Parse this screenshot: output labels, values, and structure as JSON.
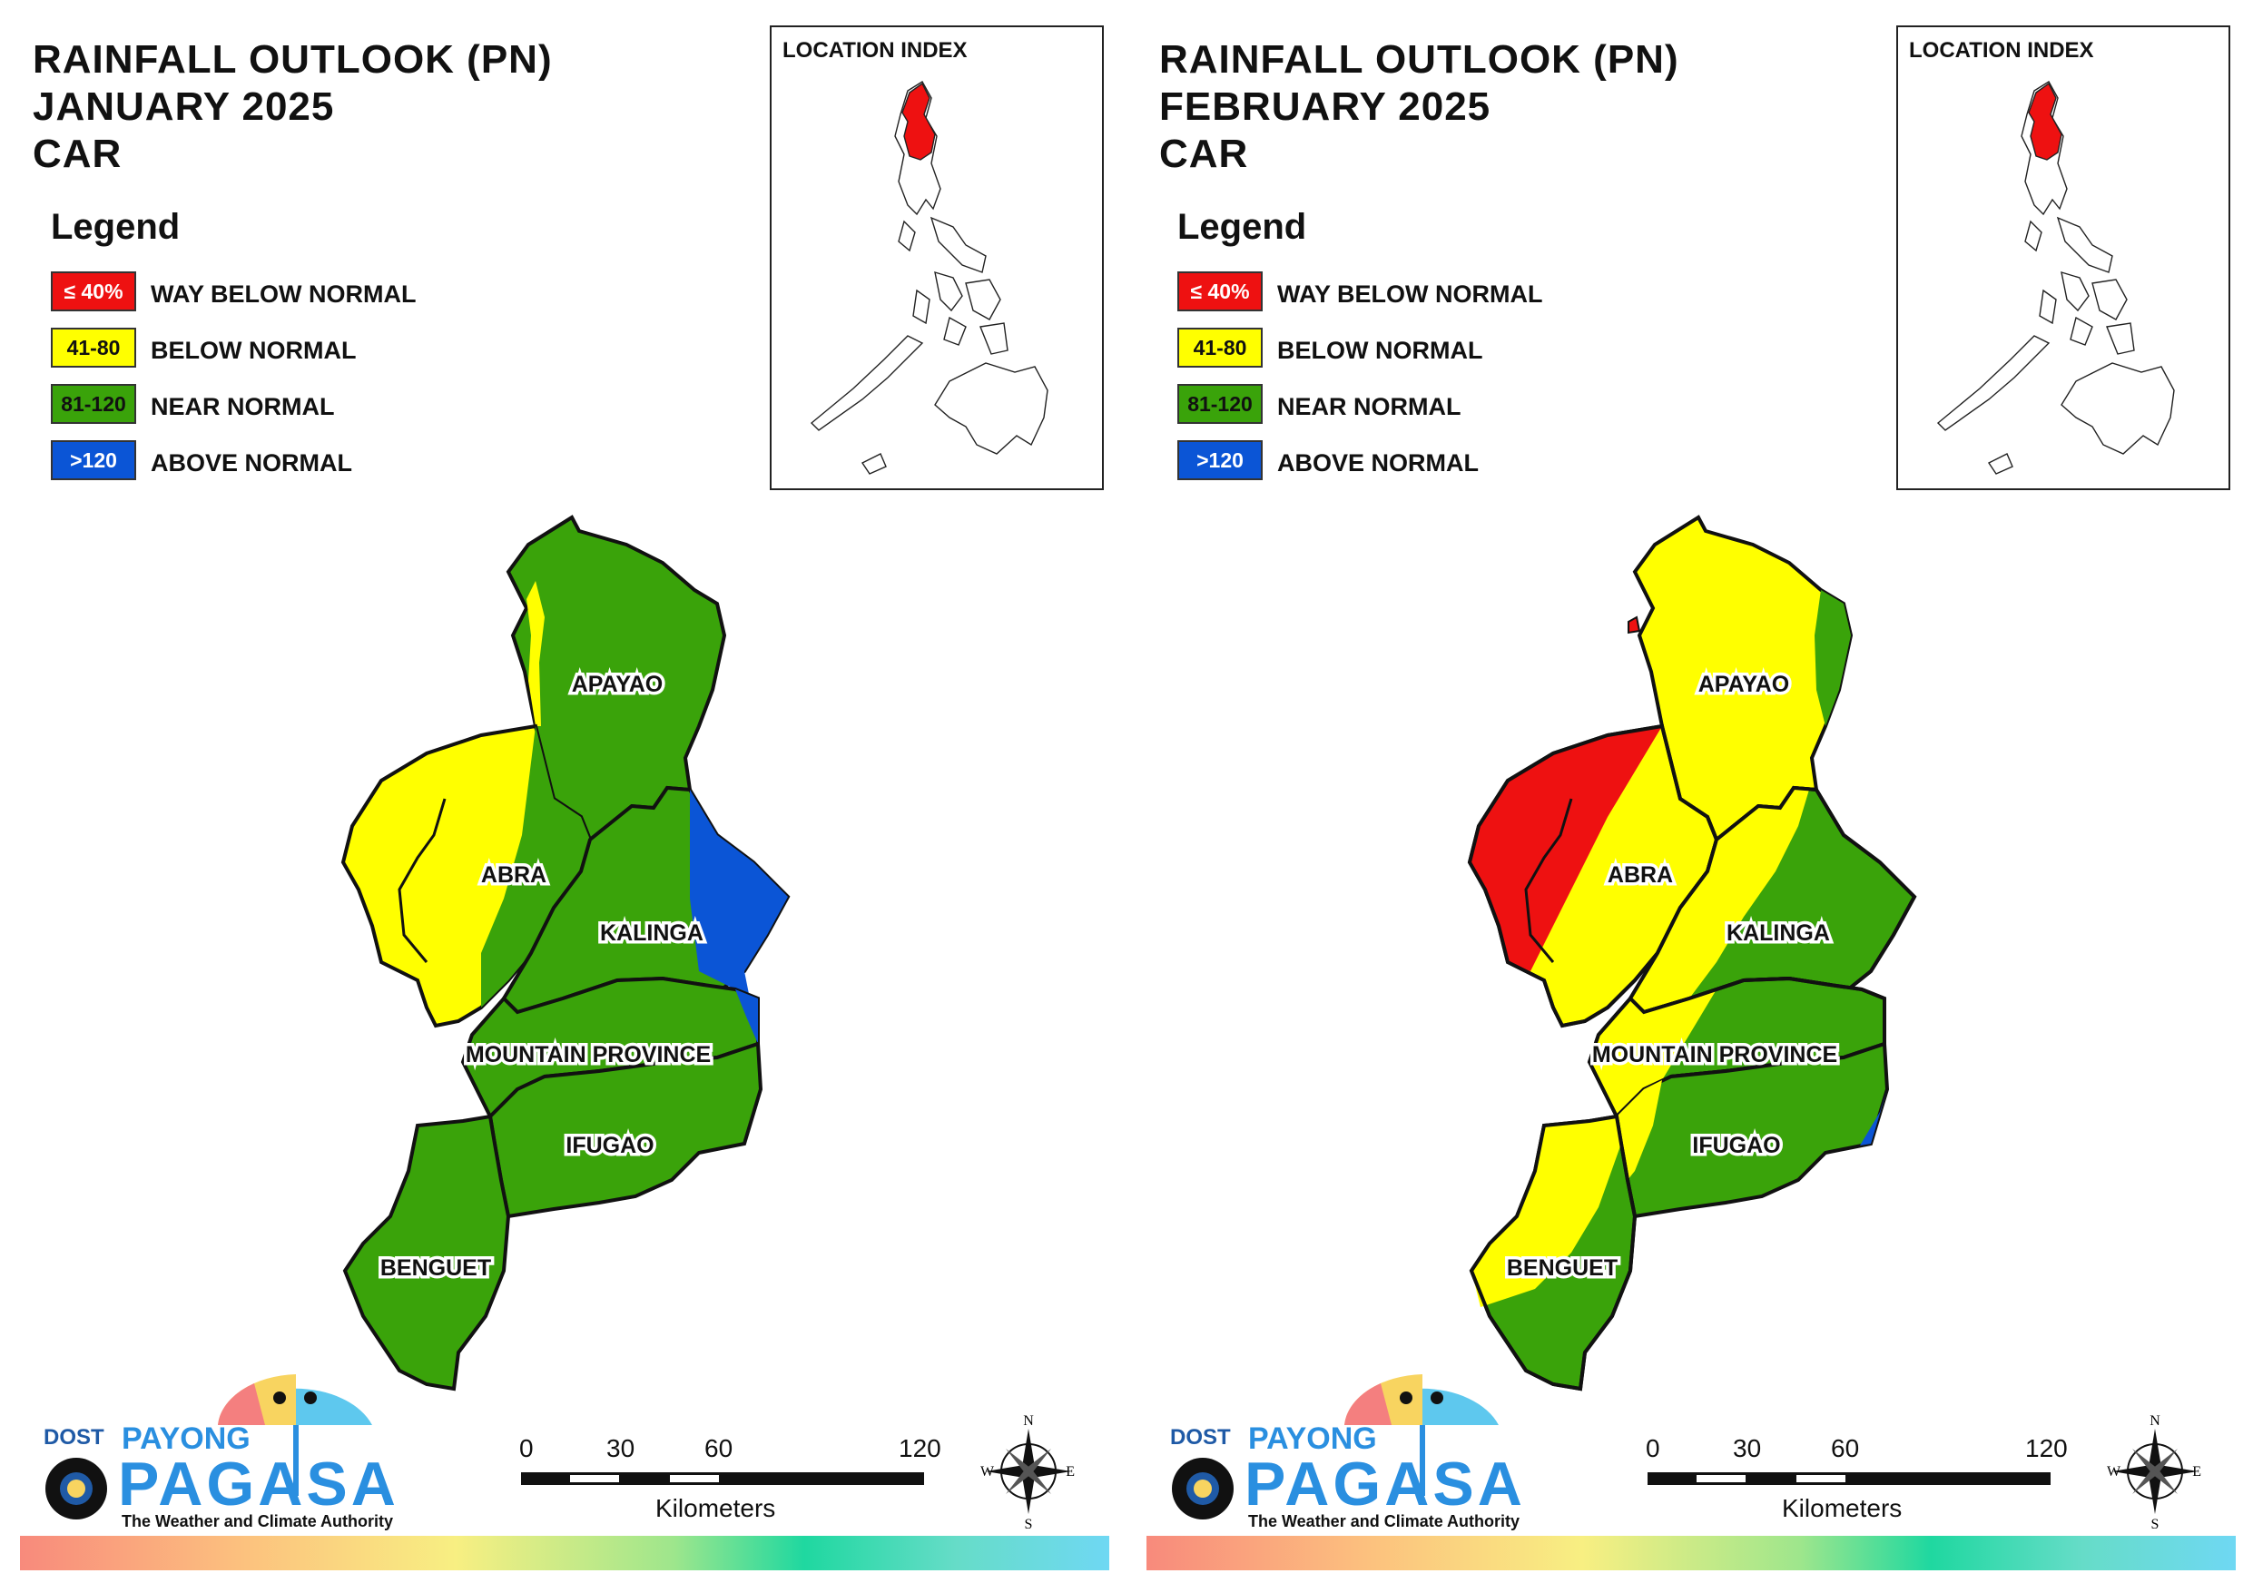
{
  "panels": [
    {
      "title": [
        "RAINFALL OUTLOOK (PN)",
        "JANUARY 2025",
        "CAR"
      ],
      "provinces": {
        "apayao": "APAYAO",
        "abra": "ABRA",
        "kalinga": "KALINGA",
        "mountain_province": "MOUNTAIN PROVINCE",
        "ifugao": "IFUGAO",
        "benguet": "BENGUET"
      },
      "dominant_category": {
        "APAYAO": "NEAR NORMAL",
        "ABRA": "BELOW NORMAL",
        "KALINGA": "NEAR NORMAL",
        "MOUNTAIN PROVINCE": "NEAR NORMAL",
        "IFUGAO": "NEAR NORMAL",
        "BENGUET": "NEAR NORMAL"
      }
    },
    {
      "title": [
        "RAINFALL OUTLOOK (PN)",
        "FEBRUARY 2025",
        "CAR"
      ],
      "provinces": {
        "apayao": "APAYAO",
        "abra": "ABRA",
        "kalinga": "KALINGA",
        "mountain_province": "MOUNTAIN PROVINCE",
        "ifugao": "IFUGAO",
        "benguet": "BENGUET"
      },
      "dominant_category": {
        "APAYAO": "BELOW NORMAL",
        "ABRA": "BELOW NORMAL",
        "KALINGA": "NEAR NORMAL",
        "MOUNTAIN PROVINCE": "NEAR NORMAL",
        "IFUGAO": "NEAR NORMAL",
        "BENGUET": "NEAR NORMAL"
      }
    }
  ],
  "legend": {
    "heading": "Legend",
    "items": [
      {
        "range": "≤ 40%",
        "label": "WAY BELOW NORMAL",
        "color": "#ee1111",
        "text_color": "#ffffff"
      },
      {
        "range": "41-80",
        "label": "BELOW NORMAL",
        "color": "#ffff00",
        "text_color": "#111111"
      },
      {
        "range": "81-120",
        "label": "NEAR NORMAL",
        "color": "#3aa30a",
        "text_color": "#111111"
      },
      {
        "range": ">120",
        "label": "ABOVE NORMAL",
        "color": "#0b55d6",
        "text_color": "#ffffff"
      }
    ]
  },
  "location_index": {
    "title": "LOCATION INDEX",
    "highlight_color": "#ee1111"
  },
  "scale_bar": {
    "ticks": [
      "0",
      "30",
      "60",
      "120"
    ],
    "units": "Kilometers"
  },
  "compass": {
    "n": "N",
    "e": "E",
    "s": "S",
    "w": "W"
  },
  "logo": {
    "dost": "DOST",
    "payong": "PAYONG",
    "pagasa": "PAGASA",
    "tagline": "The Weather and Climate Authority"
  }
}
